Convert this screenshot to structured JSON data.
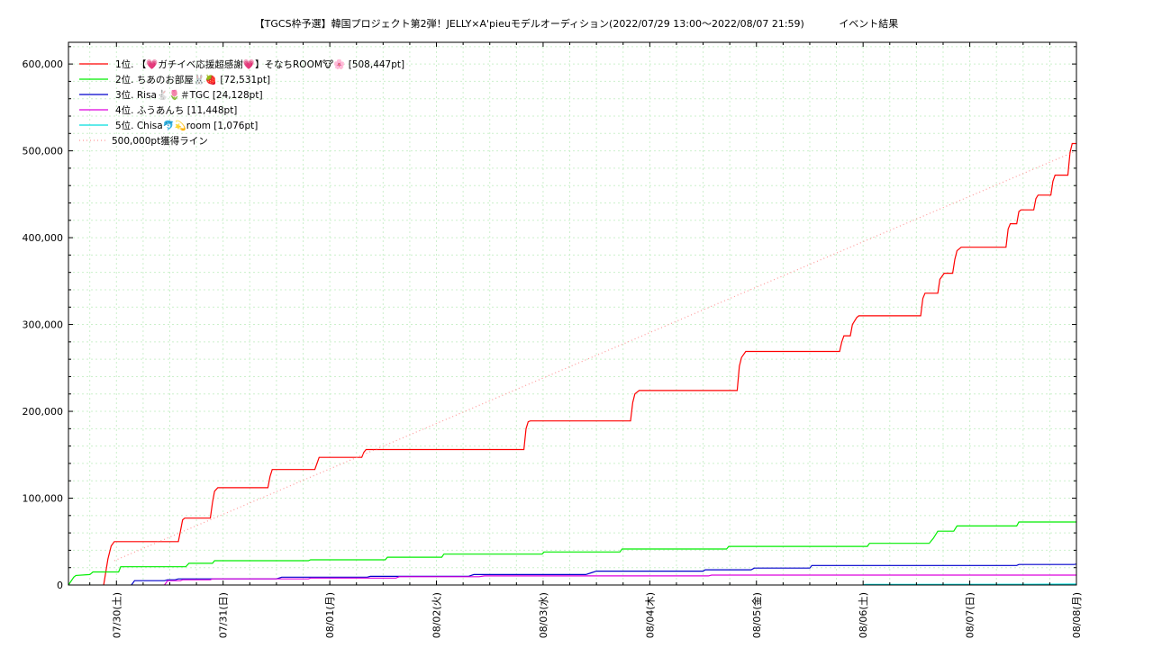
{
  "page": {
    "title": "【TGCS枠予選】韓国プロジェクト第2弾！JELLY×A'pieuモデルオーディション(2022/07/29 13:00〜2022/08/07 21:59)",
    "status": "イベント結果"
  },
  "chart_data": {
    "type": "line",
    "title": "【TGCS枠予選】韓国プロジェクト第2弾！JELLY×A'pieuモデルオーディション(2022/07/29 13:00〜2022/08/07 21:59)",
    "xlabel": "",
    "ylabel": "",
    "xlim": [
      -0.45,
      9.0
    ],
    "ylim": [
      0,
      625000
    ],
    "x_tick_labels": [
      "07/30(土)",
      "07/31(日)",
      "08/01(月)",
      "08/02(火)",
      "08/03(水)",
      "08/04(木)",
      "08/05(金)",
      "08/06(土)",
      "08/07(日)",
      "08/08(月)"
    ],
    "y_ticks": [
      0,
      100000,
      200000,
      300000,
      400000,
      500000,
      600000
    ],
    "y_tick_labels": [
      "0",
      "100,000",
      "200,000",
      "300,000",
      "400,000",
      "500,000",
      "600,000"
    ],
    "grid": true,
    "legend_position": "top-left",
    "colors": {
      "rank1": "#ff0000",
      "rank2": "#00ee00",
      "rank3": "#0000cc",
      "rank4": "#dd00dd",
      "rank5": "#00dddd",
      "target_line": "#ff9999",
      "grid": "#ccf0cc"
    },
    "series": [
      {
        "name": "1位. 【💗ガチイベ応援超感謝💗】そなちROOM🐮🌸 [508,447pt]",
        "color": "#ff0000",
        "style": "solid",
        "points": [
          [
            -0.12,
            0
          ],
          [
            -0.08,
            30000
          ],
          [
            -0.05,
            45000
          ],
          [
            -0.02,
            50000
          ],
          [
            0.58,
            50000
          ],
          [
            0.6,
            62000
          ],
          [
            0.62,
            75000
          ],
          [
            0.64,
            77000
          ],
          [
            0.88,
            77000
          ],
          [
            0.9,
            95000
          ],
          [
            0.92,
            108000
          ],
          [
            0.95,
            112000
          ],
          [
            1.42,
            112000
          ],
          [
            1.44,
            125000
          ],
          [
            1.46,
            133000
          ],
          [
            1.86,
            133000
          ],
          [
            1.88,
            140000
          ],
          [
            1.9,
            147000
          ],
          [
            2.3,
            147000
          ],
          [
            2.32,
            153000
          ],
          [
            2.34,
            156000
          ],
          [
            3.82,
            156000
          ],
          [
            3.84,
            180000
          ],
          [
            3.86,
            188000
          ],
          [
            3.88,
            189000
          ],
          [
            4.82,
            189000
          ],
          [
            4.84,
            210000
          ],
          [
            4.86,
            220000
          ],
          [
            4.9,
            224000
          ],
          [
            5.82,
            224000
          ],
          [
            5.84,
            252000
          ],
          [
            5.86,
            262000
          ],
          [
            5.9,
            269000
          ],
          [
            6.78,
            269000
          ],
          [
            6.8,
            280000
          ],
          [
            6.82,
            287000
          ],
          [
            6.88,
            287000
          ],
          [
            6.9,
            300000
          ],
          [
            6.94,
            308000
          ],
          [
            6.96,
            310000
          ],
          [
            7.54,
            310000
          ],
          [
            7.56,
            330000
          ],
          [
            7.58,
            336000
          ],
          [
            7.7,
            336000
          ],
          [
            7.72,
            352000
          ],
          [
            7.76,
            359000
          ],
          [
            7.84,
            359000
          ],
          [
            7.86,
            375000
          ],
          [
            7.88,
            385000
          ],
          [
            7.92,
            389000
          ],
          [
            8.34,
            389000
          ],
          [
            8.36,
            410000
          ],
          [
            8.38,
            416000
          ],
          [
            8.44,
            416000
          ],
          [
            8.46,
            430000
          ],
          [
            8.48,
            432000
          ],
          [
            8.6,
            432000
          ],
          [
            8.62,
            445000
          ],
          [
            8.64,
            449000
          ],
          [
            8.76,
            449000
          ],
          [
            8.78,
            465000
          ],
          [
            8.8,
            472000
          ],
          [
            8.92,
            472000
          ],
          [
            8.93,
            485000
          ],
          [
            8.94,
            498000
          ],
          [
            8.96,
            508447
          ],
          [
            9.0,
            508447
          ]
        ]
      },
      {
        "name": "2位. ちあのお部屋🐰🍓 [72,531pt]",
        "color": "#00ee00",
        "style": "solid",
        "points": [
          [
            -0.45,
            0
          ],
          [
            -0.4,
            9000
          ],
          [
            -0.38,
            11000
          ],
          [
            -0.25,
            12000
          ],
          [
            -0.22,
            15000
          ],
          [
            0.02,
            15000
          ],
          [
            0.04,
            21000
          ],
          [
            0.65,
            21000
          ],
          [
            0.68,
            25000
          ],
          [
            0.9,
            25000
          ],
          [
            0.92,
            28000
          ],
          [
            1.8,
            28000
          ],
          [
            1.82,
            29000
          ],
          [
            2.52,
            29000
          ],
          [
            2.54,
            32000
          ],
          [
            3.05,
            32000
          ],
          [
            3.07,
            35500
          ],
          [
            3.99,
            35500
          ],
          [
            4.01,
            38000
          ],
          [
            4.72,
            38000
          ],
          [
            4.74,
            41500
          ],
          [
            5.72,
            41500
          ],
          [
            5.74,
            44500
          ],
          [
            7.04,
            44500
          ],
          [
            7.06,
            48000
          ],
          [
            7.62,
            48000
          ],
          [
            7.66,
            54000
          ],
          [
            7.7,
            62000
          ],
          [
            7.85,
            62000
          ],
          [
            7.88,
            68000
          ],
          [
            8.44,
            68000
          ],
          [
            8.46,
            72531
          ],
          [
            9.0,
            72531
          ]
        ]
      },
      {
        "name": "3位. Risa🐇🌷＃TGC [24,128pt]",
        "color": "#0000cc",
        "style": "solid",
        "points": [
          [
            0.14,
            0
          ],
          [
            0.17,
            5000
          ],
          [
            0.45,
            5000
          ],
          [
            0.48,
            6000
          ],
          [
            0.55,
            6000
          ],
          [
            0.58,
            7000
          ],
          [
            1.5,
            7000
          ],
          [
            1.55,
            9000
          ],
          [
            2.35,
            9000
          ],
          [
            2.38,
            10000
          ],
          [
            3.3,
            10000
          ],
          [
            3.35,
            12000
          ],
          [
            4.4,
            12000
          ],
          [
            4.45,
            14000
          ],
          [
            4.5,
            16000
          ],
          [
            5.5,
            16000
          ],
          [
            5.52,
            17500
          ],
          [
            5.95,
            17500
          ],
          [
            5.98,
            19500
          ],
          [
            6.5,
            19500
          ],
          [
            6.52,
            22500
          ],
          [
            8.44,
            22500
          ],
          [
            8.46,
            23600
          ],
          [
            8.98,
            23600
          ],
          [
            9.0,
            24128
          ]
        ]
      },
      {
        "name": "4位. ふうあんち [11,448pt]",
        "color": "#dd00dd",
        "style": "solid",
        "points": [
          [
            0.45,
            0
          ],
          [
            0.48,
            5000
          ],
          [
            0.6,
            5000
          ],
          [
            0.62,
            6000
          ],
          [
            0.88,
            6000
          ],
          [
            0.9,
            7000
          ],
          [
            1.8,
            7000
          ],
          [
            1.82,
            8000
          ],
          [
            2.62,
            8000
          ],
          [
            2.65,
            9500
          ],
          [
            3.4,
            9500
          ],
          [
            3.45,
            10500
          ],
          [
            5.55,
            10500
          ],
          [
            5.58,
            11448
          ],
          [
            9.0,
            11448
          ]
        ]
      },
      {
        "name": "5位. Chisa🐬💫room [1,076pt]",
        "color": "#00dddd",
        "style": "solid",
        "points": [
          [
            7.0,
            0
          ],
          [
            7.02,
            600
          ],
          [
            8.5,
            800
          ],
          [
            9.0,
            1076
          ]
        ]
      },
      {
        "name": "500,000pt獲得ライン",
        "color": "#ff9999",
        "style": "dotted",
        "points": [
          [
            -0.02,
            28000
          ],
          [
            9.0,
            500000
          ]
        ]
      }
    ]
  }
}
